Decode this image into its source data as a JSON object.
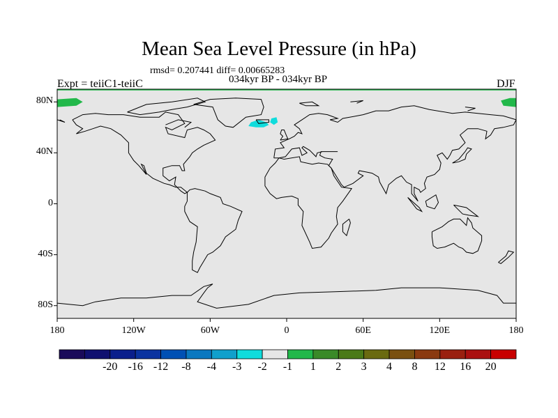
{
  "title": "Mean Sea Level Pressure (in hPa)",
  "stats": "rmsd= 0.207441 diff= 0.00665283",
  "period": "034kyr BP - 034kyr BP",
  "experiment": "Expt = teiiC1-teiiC",
  "season": "DJF",
  "lat_ticks": [
    {
      "label": "80N",
      "value": 80
    },
    {
      "label": "40N",
      "value": 40
    },
    {
      "label": "0",
      "value": 0
    },
    {
      "label": "40S",
      "value": -40
    },
    {
      "label": "80S",
      "value": -80
    }
  ],
  "lon_ticks": [
    {
      "label": "180",
      "value": -180
    },
    {
      "label": "120W",
      "value": -120
    },
    {
      "label": "60W",
      "value": -60
    },
    {
      "label": "0",
      "value": 0
    },
    {
      "label": "60E",
      "value": 60
    },
    {
      "label": "120E",
      "value": 120
    },
    {
      "label": "180",
      "value": 180
    }
  ],
  "colorbar": {
    "colors": [
      "#1a0a5a",
      "#101070",
      "#0a1f8c",
      "#0a33a0",
      "#0050b4",
      "#0a78c0",
      "#10a0cc",
      "#10dcdc",
      "#e6e6e6",
      "#22b84a",
      "#3a8a28",
      "#4a7a18",
      "#6a6a10",
      "#7a5010",
      "#8a3a10",
      "#9a2010",
      "#aa1010",
      "#c80000"
    ],
    "labels": [
      "-20",
      "-16",
      "-12",
      "-8",
      "-4",
      "-3",
      "-2",
      "-1",
      "1",
      "2",
      "3",
      "4",
      "8",
      "12",
      "16",
      "20"
    ]
  },
  "map": {
    "background_color": "#e6e6e6",
    "anomalies": [
      {
        "color": "#10dcdc",
        "polygon": [
          [
            -28,
            64
          ],
          [
            -22,
            66
          ],
          [
            -16,
            64
          ],
          [
            -14,
            62
          ],
          [
            -18,
            60
          ],
          [
            -24,
            60
          ],
          [
            -30,
            61
          ]
        ]
      },
      {
        "color": "#10dcdc",
        "polygon": [
          [
            -12,
            67
          ],
          [
            -8,
            68
          ],
          [
            -7,
            64
          ],
          [
            -10,
            62
          ],
          [
            -13,
            64
          ]
        ]
      },
      {
        "color": "#22b84a",
        "polygon": [
          [
            -180,
            82
          ],
          [
            -165,
            83
          ],
          [
            -160,
            80
          ],
          [
            -165,
            77
          ],
          [
            -180,
            76
          ]
        ]
      },
      {
        "color": "#22b84a",
        "polygon": [
          [
            168,
            81
          ],
          [
            175,
            83
          ],
          [
            180,
            83
          ],
          [
            180,
            76
          ],
          [
            170,
            77
          ]
        ]
      },
      {
        "color": "#22b84a",
        "polygon": [
          [
            -180,
            90
          ],
          [
            180,
            90
          ],
          [
            180,
            89
          ],
          [
            -180,
            89
          ]
        ]
      }
    ]
  }
}
